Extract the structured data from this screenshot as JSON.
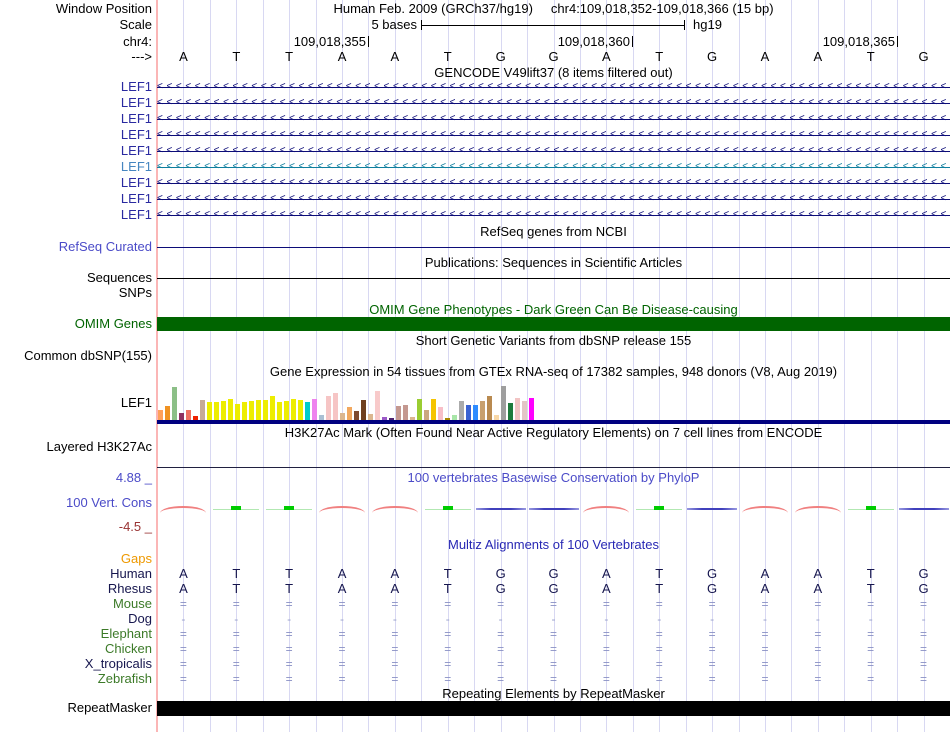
{
  "header": {
    "window_position_label": "Window Position",
    "assembly_title": "Human Feb. 2009 (GRCh37/hg19)",
    "position_title": "chr4:109,018,352-109,018,366 (15 bp)",
    "scale_label": "Scale",
    "scale_value": "5 bases",
    "scale_assembly": "hg19",
    "chrom_label": "chr4:",
    "strand_label": "--->",
    "coordinates": [
      {
        "text": "109,018,355",
        "tick_x": 368
      },
      {
        "text": "109,018,360",
        "tick_x": 632
      },
      {
        "text": "109,018,365",
        "tick_x": 897
      }
    ]
  },
  "sequence": {
    "bases": [
      "A",
      "T",
      "T",
      "A",
      "A",
      "T",
      "G",
      "G",
      "A",
      "T",
      "G",
      "A",
      "A",
      "T",
      "G"
    ]
  },
  "gencode": {
    "title": "GENCODE V49lift37 (8 items filtered out)",
    "strand_glyph": "<",
    "items": [
      {
        "label": "LEF1",
        "label_color": "#2A2AA0",
        "line_color": "#0C0C78"
      },
      {
        "label": "LEF1",
        "label_color": "#2A2AA0",
        "line_color": "#0C0C78"
      },
      {
        "label": "LEF1",
        "label_color": "#2A2AA0",
        "line_color": "#0C0C78"
      },
      {
        "label": "LEF1",
        "label_color": "#2A2AA0",
        "line_color": "#0C0C78"
      },
      {
        "label": "LEF1",
        "label_color": "#2A2AA0",
        "line_color": "#0C0C78"
      },
      {
        "label": "LEF1",
        "label_color": "#4686C0",
        "line_color": "#0E7E9E"
      },
      {
        "label": "LEF1",
        "label_color": "#2A2AA0",
        "line_color": "#0C0C78"
      },
      {
        "label": "LEF1",
        "label_color": "#2A2AA0",
        "line_color": "#0C0C78"
      },
      {
        "label": "LEF1",
        "label_color": "#2A2AA0",
        "line_color": "#0C0C78"
      }
    ]
  },
  "refseq": {
    "title": "RefSeq genes from NCBI",
    "label": "RefSeq Curated",
    "label_color": "#4B4BC8",
    "line_color": "#0C0C78"
  },
  "publications": {
    "title": "Publications: Sequences in Scientific Articles",
    "label": "Sequences",
    "line_color": "#000000"
  },
  "snps": {
    "label": "SNPs"
  },
  "omim": {
    "title": "OMIM Gene Phenotypes - Dark Green Can Be Disease-causing",
    "label": "OMIM Genes",
    "color": "#006400"
  },
  "dbsnp": {
    "title": "Short Genetic Variants from dbSNP release 155",
    "label": "Common dbSNP(155)"
  },
  "gtex": {
    "title": "Gene Expression in 54 tissues from GTEx RNA-seq of 17382 samples, 948 donors (V8, Aug 2019)",
    "label": "LEF1",
    "baseline_color": "#000080",
    "bars": [
      {
        "c": "#FFA05A",
        "h": 0.3
      },
      {
        "c": "#F09222",
        "h": 0.42
      },
      {
        "c": "#8CBF87",
        "h": 0.97
      },
      {
        "c": "#8F3060",
        "h": 0.22
      },
      {
        "c": "#F07060",
        "h": 0.3
      },
      {
        "c": "#EE2200",
        "h": 0.12
      },
      {
        "c": "#C6AA98",
        "h": 0.58
      },
      {
        "c": "#EDED00",
        "h": 0.52
      },
      {
        "c": "#EDED00",
        "h": 0.54
      },
      {
        "c": "#EDED00",
        "h": 0.57
      },
      {
        "c": "#EDED00",
        "h": 0.63
      },
      {
        "c": "#EDED00",
        "h": 0.46
      },
      {
        "c": "#EDED00",
        "h": 0.52
      },
      {
        "c": "#EDED00",
        "h": 0.56
      },
      {
        "c": "#EDED00",
        "h": 0.58
      },
      {
        "c": "#EDED00",
        "h": 0.58
      },
      {
        "c": "#EDED00",
        "h": 0.7
      },
      {
        "c": "#EDED00",
        "h": 0.52
      },
      {
        "c": "#EDED00",
        "h": 0.55
      },
      {
        "c": "#EDED00",
        "h": 0.63
      },
      {
        "c": "#EDED00",
        "h": 0.6
      },
      {
        "c": "#00CCCC",
        "h": 0.52
      },
      {
        "c": "#EE82EE",
        "h": 0.63
      },
      {
        "c": "#AABFD3",
        "h": 0.16
      },
      {
        "c": "#F6C5C5",
        "h": 0.72
      },
      {
        "c": "#F6C5C5",
        "h": 0.8
      },
      {
        "c": "#DBB68F",
        "h": 0.2
      },
      {
        "c": "#F2A85F",
        "h": 0.37
      },
      {
        "c": "#7E4A2E",
        "h": 0.25
      },
      {
        "c": "#6E3F20",
        "h": 0.58
      },
      {
        "c": "#DBB68F",
        "h": 0.18
      },
      {
        "c": "#F8CACA",
        "h": 0.86
      },
      {
        "c": "#9B59C8",
        "h": 0.1
      },
      {
        "c": "#4B2070",
        "h": 0.06
      },
      {
        "c": "#C49890",
        "h": 0.42
      },
      {
        "c": "#C49890",
        "h": 0.45
      },
      {
        "c": "#DBB68F",
        "h": 0.08
      },
      {
        "c": "#9ACD32",
        "h": 0.62
      },
      {
        "c": "#CBA880",
        "h": 0.3
      },
      {
        "c": "#F5C400",
        "h": 0.62
      },
      {
        "c": "#F8BFC8",
        "h": 0.38
      },
      {
        "c": "#A98600",
        "h": 0.06
      },
      {
        "c": "#A8E6A8",
        "h": 0.16
      },
      {
        "c": "#ABABAB",
        "h": 0.55
      },
      {
        "c": "#3A62D2",
        "h": 0.45
      },
      {
        "c": "#2E8BFF",
        "h": 0.45
      },
      {
        "c": "#C8A06E",
        "h": 0.55
      },
      {
        "c": "#B98A50",
        "h": 0.7
      },
      {
        "c": "#F8D8A8",
        "h": 0.15
      },
      {
        "c": "#9E9E9E",
        "h": 1.0
      },
      {
        "c": "#1E7A3C",
        "h": 0.5
      },
      {
        "c": "#F2C4C4",
        "h": 0.65
      },
      {
        "c": "#E3C6C6",
        "h": 0.55
      },
      {
        "c": "#FF00FF",
        "h": 0.65
      }
    ]
  },
  "h3k27ac": {
    "title": "H3K27Ac Mark (Often Found Near Active Regulatory Elements) on 7 cell lines from ENCODE",
    "label": "Layered H3K27Ac",
    "line_color": "#202040"
  },
  "conservation": {
    "title": "100 vertebrates Basewise Conservation by PhyloP",
    "title_color": "#4B4BC8",
    "label": "100 Vert. Cons",
    "label_color": "#4B4BC8",
    "max_label": "4.88 _",
    "max_color": "#4B4BC8",
    "min_label": "-4.5 _",
    "min_color": "#993333",
    "marks": [
      "r",
      "g",
      "g",
      "r",
      "r",
      "g",
      "b",
      "b",
      "r",
      "g",
      "b",
      "r",
      "r",
      "g",
      "b"
    ],
    "colors": {
      "r": "#F08080",
      "g": "#00CC00",
      "g_line": "#B2E8B2",
      "b": "#4040BC"
    }
  },
  "multiz": {
    "title": "Multiz Alignments of 100 Vertebrates",
    "title_color": "#2828B4",
    "gaps_label": "Gaps",
    "gaps_color": "#EE9900",
    "symbol_color": "#8890C4",
    "dash_color": "#9AA2CC",
    "seq_color": "#16164E",
    "species": [
      {
        "name": "Human",
        "color": "#16164E",
        "row": "seq"
      },
      {
        "name": "Rhesus",
        "color": "#16164E",
        "row": "seq"
      },
      {
        "name": "Mouse",
        "color": "#3C7A28",
        "row": "="
      },
      {
        "name": "Dog",
        "color": "#16164E",
        "row": "-"
      },
      {
        "name": "Elephant",
        "color": "#3C7A28",
        "row": "="
      },
      {
        "name": "Chicken",
        "color": "#3C7A28",
        "row": "="
      },
      {
        "name": "X_tropicalis",
        "color": "#16164E",
        "row": "="
      },
      {
        "name": "Zebrafish",
        "color": "#3C7A28",
        "row": "="
      }
    ]
  },
  "repeatmasker": {
    "title": "Repeating Elements by RepeatMasker",
    "label": "RepeatMasker",
    "color": "#000000"
  }
}
